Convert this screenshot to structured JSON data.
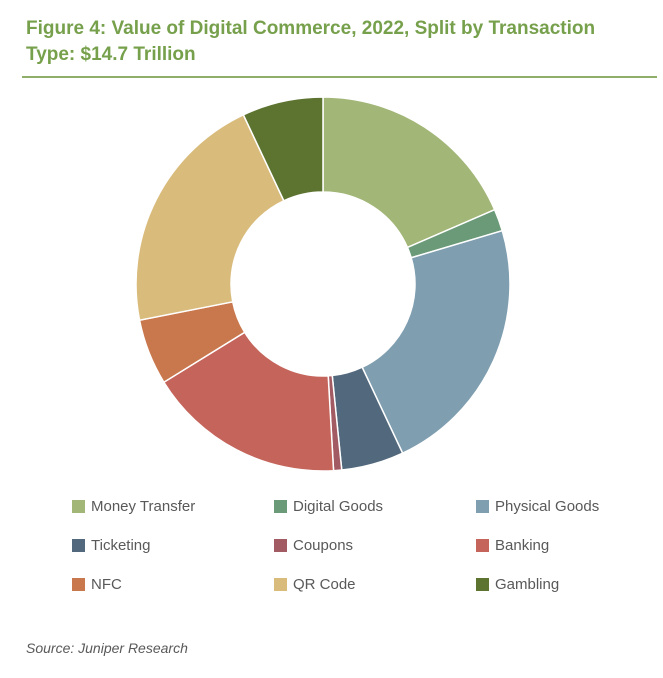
{
  "chart_data": {
    "type": "pie",
    "variant": "donut",
    "title": "Figure 4: Value of Digital Commerce, 2022, Split by Transaction Type: $14.7 Trillion",
    "unit": "share of total (%)",
    "categories": [
      "Money Transfer",
      "Digital Goods",
      "Physical Goods",
      "Ticketing",
      "Coupons",
      "Banking",
      "NFC",
      "QR Code",
      "Gambling"
    ],
    "values": [
      18.5,
      1.9,
      22.6,
      5.4,
      0.7,
      17.1,
      5.7,
      21.1,
      7.0
    ],
    "colors": [
      "#a2b677",
      "#6b9a78",
      "#7f9eb0",
      "#52687c",
      "#a25a63",
      "#c4645a",
      "#c9784e",
      "#d9bb7c",
      "#5d7330"
    ],
    "legend_position": "bottom",
    "source": "Source: Juniper Research"
  }
}
